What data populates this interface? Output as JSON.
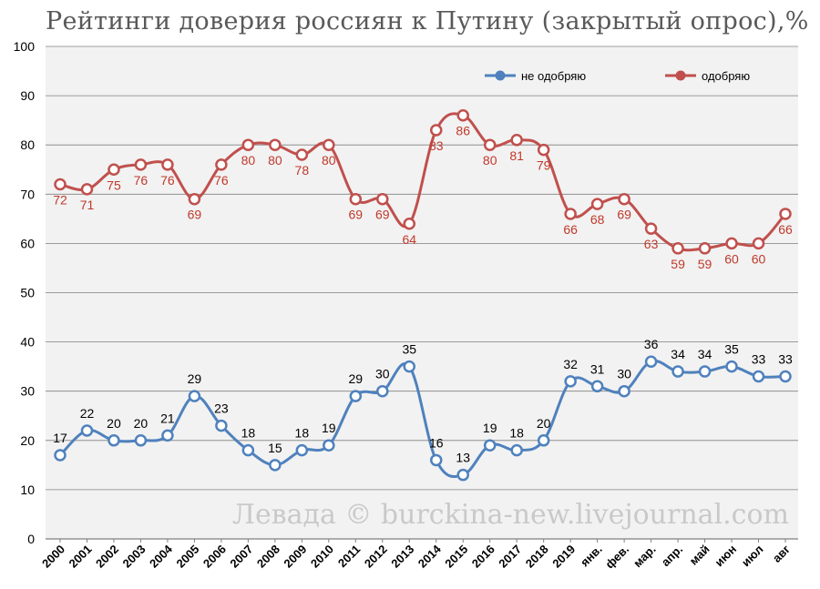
{
  "title": "Рейтинги доверия россиян к Путину (закрытый опрос),%",
  "watermark": "Левада © burckina-new.livejournal.com",
  "colors": {
    "approve": "#c0504d",
    "disapprove": "#4f81bd",
    "plot_bg": "#f2f2f2",
    "grid": "#808080"
  },
  "chart_data": {
    "type": "line",
    "title": "Рейтинги доверия россиян к Путину (закрытый опрос),%",
    "xlabel": "",
    "ylabel": "",
    "ylim": [
      0,
      100
    ],
    "yticks": [
      0,
      10,
      20,
      30,
      40,
      50,
      60,
      70,
      80,
      90,
      100
    ],
    "grid": true,
    "legend_position": "top-right",
    "categories": [
      "2000",
      "2001",
      "2002",
      "2003",
      "2004",
      "2005",
      "2006",
      "2007",
      "2008",
      "2009",
      "2010",
      "2011",
      "2012",
      "2013",
      "2014",
      "2015",
      "2016",
      "2017",
      "2018",
      "2019",
      "янв.",
      "фев.",
      "мар.",
      "апр.",
      "май",
      "июн",
      "июл",
      "авг"
    ],
    "series": [
      {
        "name": "не одобряю",
        "color": "#4f81bd",
        "values": [
          17,
          22,
          20,
          20,
          21,
          29,
          23,
          18,
          15,
          18,
          19,
          29,
          30,
          35,
          16,
          13,
          19,
          18,
          20,
          32,
          31,
          30,
          36,
          34,
          34,
          35,
          33,
          33
        ]
      },
      {
        "name": "одобряю",
        "color": "#c0504d",
        "values": [
          72,
          71,
          75,
          76,
          76,
          69,
          76,
          80,
          80,
          78,
          80,
          69,
          69,
          64,
          83,
          86,
          80,
          81,
          79,
          66,
          68,
          69,
          63,
          59,
          59,
          60,
          60,
          66
        ]
      }
    ]
  }
}
